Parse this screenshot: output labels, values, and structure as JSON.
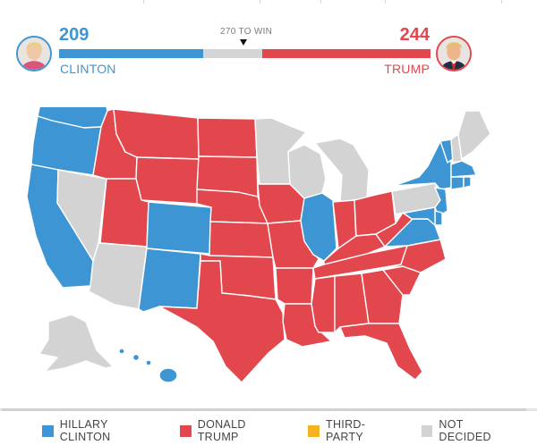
{
  "race": {
    "threshold_label": "270 TO WIN",
    "threshold": 270,
    "total_electoral_votes": 538,
    "clinton": {
      "name": "CLINTON",
      "votes": "209",
      "votes_num": 209,
      "color": "#3d96d3"
    },
    "trump": {
      "name": "TRUMP",
      "votes": "244",
      "votes_num": 244,
      "color": "#e2474d"
    }
  },
  "map": {
    "colors": {
      "clinton": "#3d96d3",
      "trump": "#e2474d",
      "third": "#f5b324",
      "undecided": "#d3d3d3"
    },
    "states": {
      "WA": "clinton",
      "OR": "clinton",
      "CA": "clinton",
      "NV": "undecided",
      "ID": "trump",
      "MT": "trump",
      "WY": "trump",
      "UT": "trump",
      "AZ": "undecided",
      "CO": "clinton",
      "NM": "clinton",
      "ND": "trump",
      "SD": "trump",
      "NE": "trump",
      "KS": "trump",
      "OK": "trump",
      "TX": "trump",
      "MN": "undecided",
      "IA": "trump",
      "MO": "trump",
      "AR": "trump",
      "LA": "trump",
      "WI": "undecided",
      "IL": "clinton",
      "MI": "undecided",
      "IN": "trump",
      "OH": "trump",
      "KY": "trump",
      "TN": "trump",
      "MS": "trump",
      "AL": "trump",
      "GA": "trump",
      "FL": "trump",
      "SC": "trump",
      "NC": "trump",
      "VA": "clinton",
      "WV": "trump",
      "PA": "undecided",
      "NY": "clinton",
      "VT": "clinton",
      "NH": "undecided",
      "ME": "undecided",
      "MA": "clinton",
      "CT": "clinton",
      "RI": "clinton",
      "NJ": "clinton",
      "DE": "clinton",
      "MD": "clinton",
      "AK": "undecided",
      "HI": "clinton"
    }
  },
  "legend": [
    {
      "label": "HILLARY CLINTON",
      "color": "#3d96d3"
    },
    {
      "label": "DONALD TRUMP",
      "color": "#e2474d"
    },
    {
      "label": "THIRD-PARTY",
      "color": "#f5b324"
    },
    {
      "label": "NOT DECIDED",
      "color": "#d3d3d3"
    }
  ]
}
